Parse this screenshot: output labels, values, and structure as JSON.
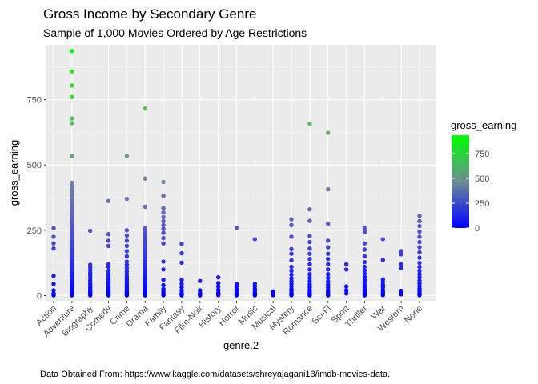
{
  "chart_data": {
    "type": "scatter",
    "title": "Gross Income by Secondary Genre",
    "subtitle": "Sample of 1,000 Movies Ordered by Age Restrictions",
    "xlabel": "genre.2",
    "ylabel": "gross_earning",
    "caption": "Data Obtained From: https://www.kaggle.com/datasets/shreyajagani13/imdb-movies-data.",
    "ylim": [
      -20,
      960
    ],
    "yticks": [
      0,
      250,
      500,
      750
    ],
    "grid": true,
    "legend": {
      "title": "gross_earning",
      "position": "right",
      "ticks": [
        0,
        250,
        500,
        750
      ],
      "range": [
        0,
        936
      ],
      "low_color": "#0000FF",
      "high_color": "#00FF00"
    },
    "categories": [
      "Action",
      "Adventure",
      "Biography",
      "Comedy",
      "Crime",
      "Drama",
      "Family",
      "Fantasy",
      "Film-Noir",
      "History",
      "Horror",
      "Music",
      "Musical",
      "Mystery",
      "Romance",
      "Sci-Fi",
      "Sport",
      "Thriller",
      "War",
      "Western",
      "None"
    ],
    "points": {
      "Action": [
        258,
        225,
        200,
        180,
        75,
        45,
        20,
        8,
        3,
        1
      ],
      "Adventure": [
        936,
        858,
        804,
        760,
        678,
        660,
        533,
        432,
        425,
        418,
        410,
        400,
        390,
        380,
        370,
        360,
        350,
        340,
        330,
        320,
        310,
        300,
        290,
        280,
        270,
        262,
        255,
        248,
        240,
        232,
        225,
        218,
        210,
        202,
        195,
        188,
        180,
        172,
        165,
        158,
        150,
        142,
        135,
        128,
        120,
        112,
        105,
        98,
        90,
        83,
        76,
        70,
        63,
        56,
        50,
        44,
        38,
        32,
        26,
        20,
        15,
        10,
        6,
        3,
        1
      ],
      "Biography": [
        248,
        118,
        108,
        98,
        88,
        78,
        68,
        58,
        48,
        40,
        32,
        25,
        18,
        12,
        7,
        3,
        1
      ],
      "Comedy": [
        362,
        235,
        210,
        190,
        120,
        110,
        95,
        85,
        78,
        70,
        62,
        55,
        48,
        42,
        36,
        30,
        25,
        20,
        15,
        10,
        6,
        3,
        1
      ],
      "Crime": [
        534,
        370,
        250,
        230,
        210,
        190,
        170,
        150,
        130,
        118,
        105,
        92,
        82,
        72,
        62,
        54,
        46,
        38,
        32,
        26,
        20,
        15,
        10,
        6,
        3,
        1
      ],
      "Drama": [
        716,
        448,
        340,
        258,
        250,
        242,
        234,
        226,
        218,
        210,
        202,
        195,
        188,
        180,
        172,
        165,
        158,
        150,
        142,
        135,
        128,
        120,
        112,
        105,
        98,
        90,
        83,
        76,
        70,
        63,
        56,
        50,
        44,
        38,
        32,
        26,
        20,
        15,
        10,
        6,
        3,
        1
      ],
      "Family": [
        435,
        382,
        335,
        318,
        300,
        285,
        270,
        255,
        240,
        220,
        200,
        130,
        100,
        60,
        40,
        25,
        15,
        8,
        3,
        1
      ],
      "Fantasy": [
        198,
        162,
        126,
        60,
        45,
        32,
        20,
        10,
        4,
        1
      ],
      "Film-Noir": [
        56,
        20,
        10,
        4,
        1
      ],
      "History": [
        70,
        48,
        35,
        22,
        12,
        6,
        2
      ],
      "Horror": [
        260,
        45,
        35,
        25,
        15,
        8,
        3,
        1
      ],
      "Music": [
        216,
        45,
        35,
        25,
        15,
        8,
        3,
        1
      ],
      "Musical": [
        16,
        12,
        8,
        5,
        2
      ],
      "Mystery": [
        292,
        270,
        225,
        178,
        160,
        135,
        110,
        95,
        80,
        66,
        55,
        45,
        35,
        25,
        16,
        9,
        4,
        1
      ],
      "Romance": [
        658,
        330,
        286,
        228,
        205,
        180,
        160,
        140,
        120,
        100,
        82,
        68,
        55,
        43,
        32,
        22,
        14,
        7,
        3,
        1
      ],
      "Sci-Fi": [
        623,
        407,
        275,
        210,
        185,
        160,
        140,
        120,
        100,
        82,
        68,
        55,
        43,
        32,
        22,
        14,
        7,
        3,
        1
      ],
      "Sport": [
        120,
        100,
        35,
        20,
        8
      ],
      "Thriller": [
        260,
        250,
        242,
        200,
        176,
        150,
        128,
        110,
        96,
        84,
        72,
        60,
        50,
        40,
        30,
        22,
        15,
        8,
        3,
        1
      ],
      "War": [
        216,
        136,
        62,
        52,
        42,
        32,
        22,
        14,
        7,
        2
      ],
      "Western": [
        170,
        158,
        120,
        105,
        18,
        10,
        5
      ],
      "None": [
        305,
        285,
        266,
        245,
        225,
        205,
        185,
        165,
        145,
        125,
        110,
        95,
        82,
        70,
        58,
        46,
        36,
        26,
        18,
        10,
        5,
        1
      ]
    }
  }
}
